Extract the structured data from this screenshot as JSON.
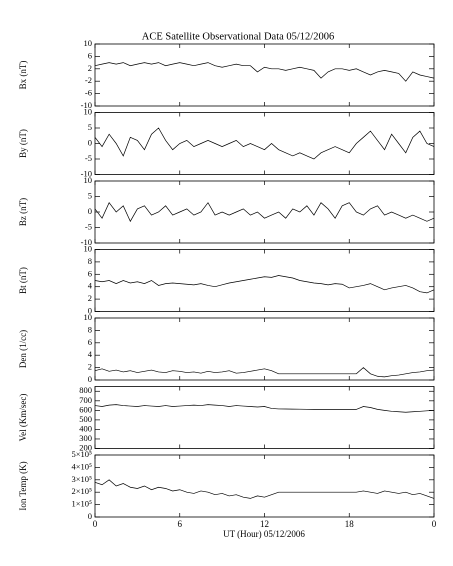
{
  "chart_data": {
    "type": "line",
    "title": "ACE Satellite Observational Data   05/12/2006",
    "xlabel": "UT (Hour)   05/12/2006",
    "xlim": [
      0,
      24
    ],
    "xticks": [
      0,
      6,
      12,
      18,
      {
        "value": 24,
        "label": "0"
      }
    ],
    "x": [
      0,
      0.5,
      1,
      1.5,
      2,
      2.5,
      3,
      3.5,
      4,
      4.5,
      5,
      5.5,
      6,
      6.5,
      7,
      7.5,
      8,
      8.5,
      9,
      9.5,
      10,
      10.5,
      11,
      11.5,
      12,
      12.5,
      13,
      13.5,
      14,
      14.5,
      15,
      15.5,
      16,
      16.5,
      17,
      17.5,
      18,
      18.5,
      19,
      19.5,
      20,
      20.5,
      21,
      21.5,
      22,
      22.5,
      23,
      23.5,
      24
    ],
    "panels": [
      {
        "ylabel": "Bx (nT)",
        "ylim": [
          -10,
          10
        ],
        "yticks": [
          -10,
          -6,
          -2,
          2,
          6,
          10
        ],
        "values": [
          3,
          3.5,
          4,
          3.5,
          4,
          3,
          3.5,
          4,
          3.5,
          4,
          3,
          3.5,
          4,
          3.5,
          3,
          3.5,
          4,
          3,
          2.5,
          3,
          3.5,
          3,
          3,
          1,
          2.5,
          2,
          2,
          1.5,
          2,
          2.5,
          2,
          1.5,
          -1,
          1,
          2,
          2,
          1.5,
          2,
          1,
          0,
          1,
          1.5,
          1,
          0.5,
          -2,
          1,
          0,
          -0.5,
          -1
        ]
      },
      {
        "ylabel": "By (nT)",
        "ylim": [
          -10,
          10
        ],
        "yticks": [
          -10,
          -5,
          0,
          5,
          10
        ],
        "values": [
          2,
          -1,
          3,
          0,
          -4,
          2,
          1,
          -2,
          3,
          5,
          1,
          -2,
          0,
          1,
          -1,
          0,
          1,
          0,
          -1,
          0,
          1,
          -1,
          0,
          -1,
          -2,
          0,
          -2,
          -3,
          -4,
          -3,
          -4,
          -5,
          -3,
          -2,
          -1,
          -2,
          -3,
          0,
          2,
          4,
          1,
          -2,
          3,
          0,
          -3,
          2,
          4,
          0,
          -1
        ]
      },
      {
        "ylabel": "Bz (nT)",
        "ylim": [
          -10,
          10
        ],
        "yticks": [
          -10,
          -5,
          0,
          5,
          10
        ],
        "values": [
          1,
          -2,
          3,
          0,
          2,
          -3,
          1,
          2,
          -1,
          0,
          2,
          -1,
          0,
          1,
          -1,
          0,
          3,
          -1,
          0,
          -1,
          0,
          1,
          -1,
          0,
          -2,
          -1,
          0,
          -2,
          1,
          0,
          2,
          -1,
          3,
          1,
          -2,
          2,
          3,
          0,
          -1,
          1,
          2,
          -1,
          0,
          -1,
          -2,
          -1,
          -2,
          -3,
          -2
        ]
      },
      {
        "ylabel": "Bt (nT)",
        "ylim": [
          0,
          10
        ],
        "yticks": [
          0,
          2,
          4,
          6,
          8,
          10
        ],
        "values": [
          5,
          4.8,
          5,
          4.5,
          5,
          4.6,
          4.8,
          4.5,
          5,
          4.2,
          4.5,
          4.6,
          4.5,
          4.4,
          4.3,
          4.5,
          4.2,
          4,
          4.3,
          4.6,
          4.8,
          5,
          5.2,
          5.4,
          5.6,
          5.5,
          5.8,
          5.6,
          5.4,
          5,
          4.8,
          4.6,
          4.5,
          4.3,
          4.5,
          4.4,
          3.8,
          4,
          4.2,
          4.5,
          4,
          3.5,
          3.8,
          4,
          4.2,
          3.8,
          3.2,
          3,
          3.5
        ]
      },
      {
        "ylabel": "Den (1/cc)",
        "ylim": [
          0,
          10
        ],
        "yticks": [
          0,
          2,
          4,
          6,
          8,
          10
        ],
        "values": [
          1.5,
          1.8,
          1.4,
          1.6,
          1.3,
          1.5,
          1.2,
          1.4,
          1.6,
          1.3,
          1.2,
          1.5,
          1.4,
          1.2,
          1.3,
          1.1,
          1.4,
          1.2,
          1.3,
          1.5,
          1.1,
          1.2,
          1.4,
          1.6,
          1.8,
          1.5,
          1,
          1,
          1,
          1,
          1,
          1,
          1,
          1,
          1,
          1,
          1,
          1,
          2,
          1,
          0.6,
          0.5,
          0.7,
          0.8,
          1,
          1.2,
          1.3,
          1.5,
          1.6
        ]
      },
      {
        "ylabel": "Vel (Km/sec)",
        "ylim": [
          200,
          850
        ],
        "yticks": [
          200,
          300,
          400,
          500,
          600,
          700,
          800
        ],
        "values": [
          650,
          640,
          655,
          660,
          650,
          645,
          640,
          650,
          645,
          640,
          650,
          640,
          645,
          650,
          655,
          650,
          660,
          655,
          650,
          640,
          650,
          645,
          640,
          635,
          640,
          620,
          615,
          614,
          613,
          612,
          611,
          610,
          610,
          610,
          610,
          610,
          610,
          610,
          640,
          630,
          610,
          600,
          590,
          585,
          580,
          585,
          590,
          595,
          600
        ]
      },
      {
        "ylabel": "Ion Temp (K)",
        "ylim": [
          0,
          500000
        ],
        "yticks": [
          0,
          {
            "value": 100000,
            "label": "1×10⁵"
          },
          {
            "value": 200000,
            "label": "2×10⁵"
          },
          {
            "value": 300000,
            "label": "3×10⁵"
          },
          {
            "value": 400000,
            "label": "4×10⁵"
          },
          {
            "value": 500000,
            "label": "5×10⁵"
          }
        ],
        "values": [
          280000,
          260000,
          300000,
          250000,
          270000,
          240000,
          230000,
          250000,
          220000,
          240000,
          230000,
          210000,
          220000,
          200000,
          190000,
          210000,
          200000,
          180000,
          190000,
          170000,
          180000,
          160000,
          150000,
          170000,
          160000,
          180000,
          200000,
          200000,
          200000,
          200000,
          200000,
          200000,
          200000,
          200000,
          200000,
          200000,
          200000,
          200000,
          210000,
          200000,
          190000,
          210000,
          200000,
          190000,
          200000,
          180000,
          190000,
          170000,
          150000
        ]
      }
    ]
  }
}
